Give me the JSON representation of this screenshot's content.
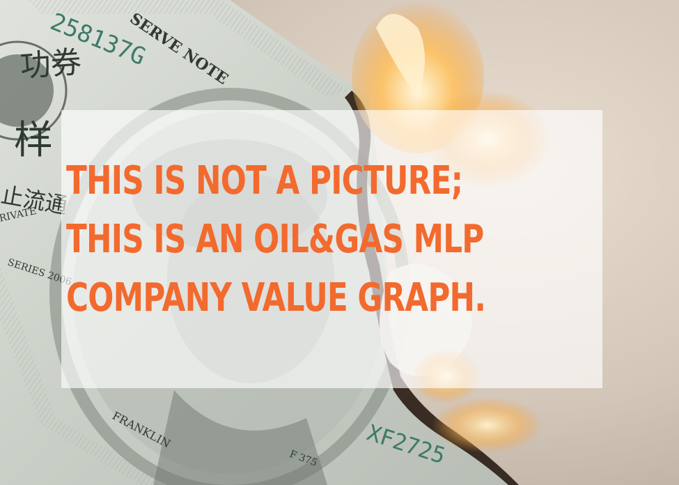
{
  "headline": {
    "line1": "THIS IS NOT A PICTURE;",
    "line2": "THIS IS AN OIL&GAS MLP",
    "line3": "COMPANY VALUE GRAPH."
  },
  "bill": {
    "serial_top": "258137G",
    "serial_bottom": "XF2725",
    "reserve_note": "SERVE NOTE",
    "series": "SERIES 2006",
    "private": "RIVATE",
    "franklin": "FRANKLIN",
    "plate": "F 375",
    "stamp_chars_1": "功券",
    "stamp_chars_2": "样",
    "stamp_chars_3": "止流通"
  },
  "colors": {
    "headline": "#f26a2e",
    "overlay": "#ffffff",
    "background": "#cfc3b6",
    "flame": "#f5a23a"
  }
}
